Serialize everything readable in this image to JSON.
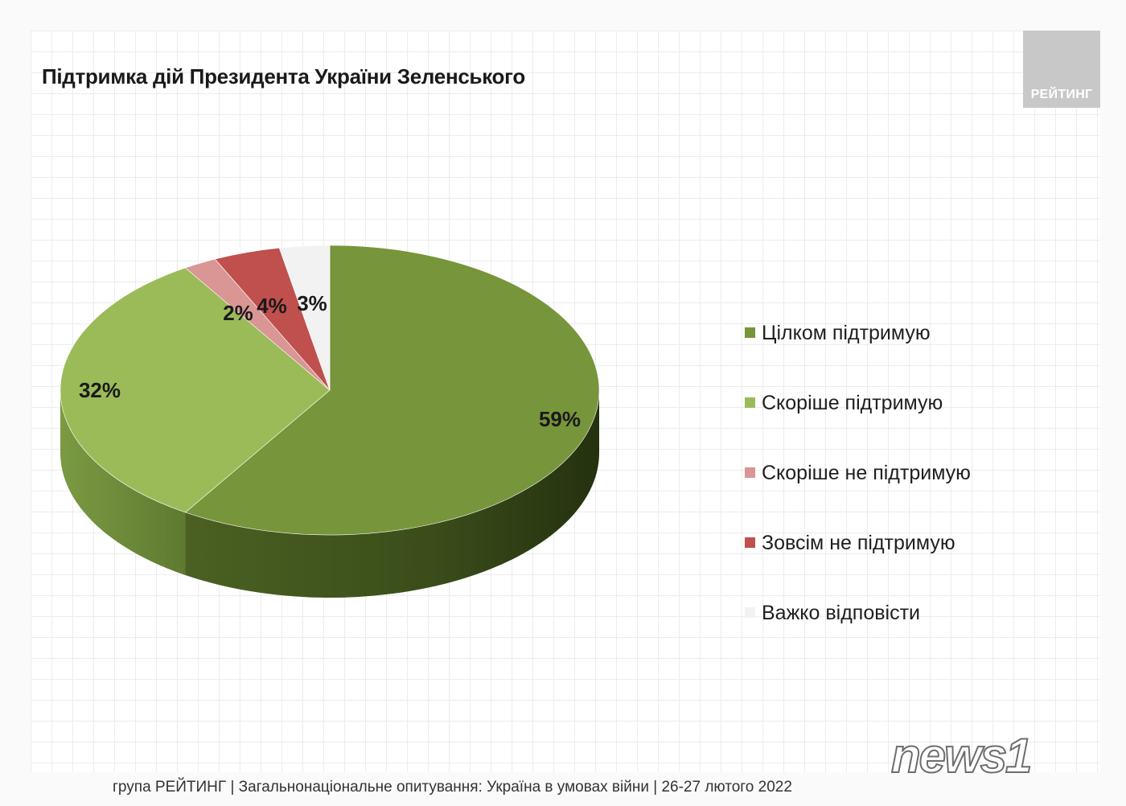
{
  "chart_data": {
    "type": "pie",
    "title": "Підтримка дій Президента України Зеленського",
    "slices": [
      {
        "label": "Цілком підтримую",
        "value": 59,
        "data_label": "59%",
        "color": "#77953a"
      },
      {
        "label": "Скоріше підтримую",
        "value": 32,
        "data_label": "32%",
        "color": "#9bbb59"
      },
      {
        "label": "Скоріше не підтримую",
        "value": 2,
        "data_label": "2%",
        "color": "#d99694"
      },
      {
        "label": "Зовсім не підтримую",
        "value": 4,
        "data_label": "4%",
        "color": "#c0504d"
      },
      {
        "label": "Важко відповісти",
        "value": 3,
        "data_label": "3%",
        "color": "#f2f2f2"
      }
    ],
    "legend_position": "right"
  },
  "logo": {
    "text": "РЕЙТИНГ"
  },
  "footer": {
    "text": "група РЕЙТИНГ | Загальнонаціональне опитування: Україна в умовах війни | 26-27 лютого 2022"
  },
  "watermark": {
    "text": "news1"
  }
}
